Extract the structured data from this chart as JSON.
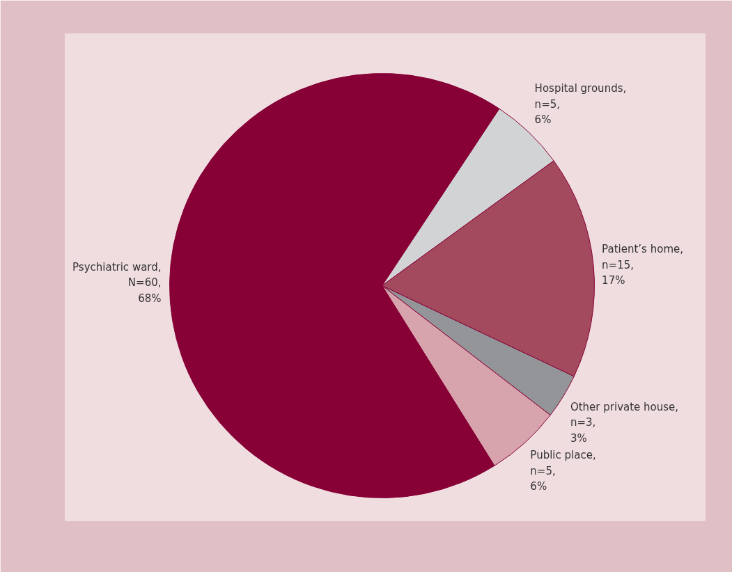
{
  "chart_data": {
    "type": "pie",
    "categories": [
      "Hospital grounds",
      "Patient’s home",
      "Other private house",
      "Public place",
      "Psychiatric ward"
    ],
    "values": [
      5,
      15,
      3,
      5,
      60
    ],
    "value_labels": [
      ",\nn=5,\n6%",
      ",\nn=15,\n17%",
      ",\nn=3,\n3%",
      ",\nn=5,\n6%",
      ",\nN=60,\n68%"
    ],
    "colors": [
      "#d1d3d4",
      "#a34a5e",
      "#939598",
      "#d7a4ad",
      "#870036"
    ]
  }
}
